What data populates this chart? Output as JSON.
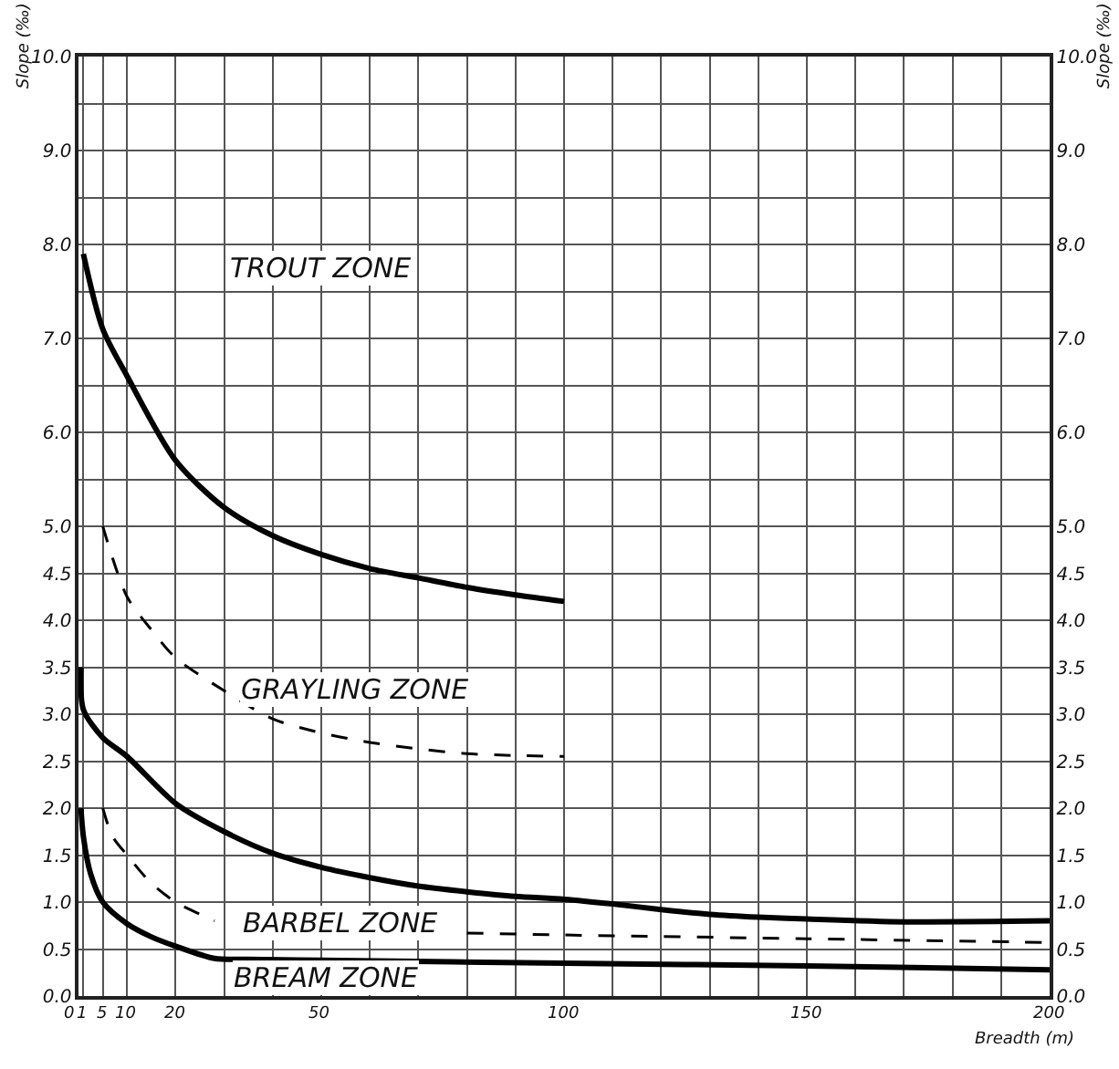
{
  "chart_data": {
    "type": "line",
    "xlabel": "Breadth (m)",
    "ylabel": "Slope (‰)",
    "y2label": "Slope (‰)",
    "xlim": [
      0,
      200
    ],
    "xticks": [
      0,
      1,
      5,
      10,
      20,
      {
        "value": 30,
        "label": null
      },
      {
        "value": 40,
        "label": null
      },
      50,
      {
        "value": 60,
        "label": null
      },
      {
        "value": 70,
        "label": null
      },
      {
        "value": 80,
        "label": null
      },
      {
        "value": 90,
        "label": null
      },
      100,
      {
        "value": 110,
        "label": null
      },
      {
        "value": 120,
        "label": null
      },
      {
        "value": 130,
        "label": null
      },
      {
        "value": 140,
        "label": null
      },
      150,
      {
        "value": 160,
        "label": null
      },
      {
        "value": 170,
        "label": null
      },
      {
        "value": 180,
        "label": null
      },
      {
        "value": 190,
        "label": null
      },
      200
    ],
    "ylim": [
      0,
      10
    ],
    "yticks": [
      {
        "value": 0,
        "label": "0.0"
      },
      {
        "value": 0.5,
        "label": "0.5"
      },
      {
        "value": 1,
        "label": "1.0"
      },
      {
        "value": 1.5,
        "label": "1.5"
      },
      {
        "value": 2,
        "label": "2.0"
      },
      {
        "value": 2.5,
        "label": "2.5"
      },
      {
        "value": 3,
        "label": "3.0"
      },
      {
        "value": 3.5,
        "label": "3.5"
      },
      {
        "value": 4,
        "label": "4.0"
      },
      {
        "value": 4.5,
        "label": "4.5"
      },
      {
        "value": 5,
        "label": "5.0"
      },
      {
        "value": 5.5,
        "label": null
      },
      {
        "value": 6,
        "label": "6.0"
      },
      {
        "value": 6.5,
        "label": null
      },
      {
        "value": 7,
        "label": "7.0"
      },
      {
        "value": 7.5,
        "label": null
      },
      {
        "value": 8,
        "label": "8.0"
      },
      {
        "value": 8.5,
        "label": null
      },
      {
        "value": 9,
        "label": "9.0"
      },
      {
        "value": 9.5,
        "label": null
      },
      {
        "value": 10,
        "label": "10.0"
      }
    ],
    "y2lim": [
      0,
      10
    ],
    "y2ticks": [
      {
        "value": 0,
        "label": "0.0"
      },
      {
        "value": 0.5,
        "label": "0.5"
      },
      {
        "value": 1,
        "label": "1.0"
      },
      {
        "value": 1.5,
        "label": "1.5"
      },
      {
        "value": 2,
        "label": "2.0"
      },
      {
        "value": 2.5,
        "label": "2.5"
      },
      {
        "value": 3,
        "label": "3.0"
      },
      {
        "value": 3.5,
        "label": "3.5"
      },
      {
        "value": 4,
        "label": "4.0"
      },
      {
        "value": 4.5,
        "label": "4.5"
      },
      {
        "value": 5,
        "label": "5.0"
      },
      {
        "value": 5.5,
        "label": null
      },
      {
        "value": 6,
        "label": "6.0"
      },
      {
        "value": 6.5,
        "label": null
      },
      {
        "value": 7,
        "label": "7.0"
      },
      {
        "value": 7.5,
        "label": null
      },
      {
        "value": 8,
        "label": "8.0"
      },
      {
        "value": 8.5,
        "label": null
      },
      {
        "value": 9,
        "label": "9.0"
      },
      {
        "value": 9.5,
        "label": null
      },
      {
        "value": 10,
        "label": "10.0"
      }
    ],
    "grid": true,
    "marker": "none",
    "series": [
      {
        "color": "#000000",
        "line_style": "solid",
        "x": [
          1,
          5,
          10,
          20,
          30,
          40,
          50,
          60,
          70,
          80,
          90,
          100
        ],
        "values": [
          7.9,
          7.1,
          6.6,
          5.7,
          5.2,
          4.9,
          4.7,
          4.55,
          4.45,
          4.35,
          4.27,
          4.2
        ]
      },
      {
        "color": "#000000",
        "line_style": "dashed",
        "x": [
          5,
          10,
          15,
          20,
          30,
          40,
          50,
          60,
          70,
          80,
          90,
          100
        ],
        "values": [
          5.0,
          4.25,
          3.9,
          3.6,
          3.25,
          2.95,
          2.8,
          2.7,
          2.63,
          2.58,
          2.56,
          2.55
        ]
      },
      {
        "color": "#000000",
        "line_style": "solid",
        "x": [
          0.5,
          1,
          5,
          10,
          20,
          30,
          40,
          50,
          60,
          70,
          80,
          90,
          100,
          110,
          120,
          130,
          140,
          150,
          170,
          200
        ],
        "values": [
          3.5,
          3.05,
          2.75,
          2.55,
          2.05,
          1.75,
          1.52,
          1.37,
          1.26,
          1.17,
          1.11,
          1.06,
          1.03,
          0.98,
          0.92,
          0.87,
          0.84,
          0.82,
          0.79,
          0.8
        ]
      },
      {
        "color": "#000000",
        "line_style": "dashed",
        "x": [
          5,
          7,
          10,
          15,
          20,
          25,
          28,
          50,
          80,
          100,
          150,
          200
        ],
        "values": [
          2.0,
          1.7,
          1.5,
          1.2,
          1.0,
          0.87,
          0.8,
          null,
          0.67,
          0.65,
          0.61,
          0.57
        ]
      },
      {
        "color": "#000000",
        "line_style": "solid",
        "x": [
          0.5,
          1,
          2.5,
          5,
          10,
          15,
          20,
          28,
          35,
          50,
          100,
          150,
          200
        ],
        "values": [
          2.0,
          1.7,
          1.3,
          1.0,
          0.77,
          0.63,
          0.53,
          0.4,
          0.39,
          0.38,
          0.35,
          0.32,
          0.28
        ]
      }
    ],
    "annotations": [
      "TROUT ZONE",
      "GRAYLING ZONE",
      "BARBEL ZONE",
      "BREAM ZONE"
    ]
  }
}
